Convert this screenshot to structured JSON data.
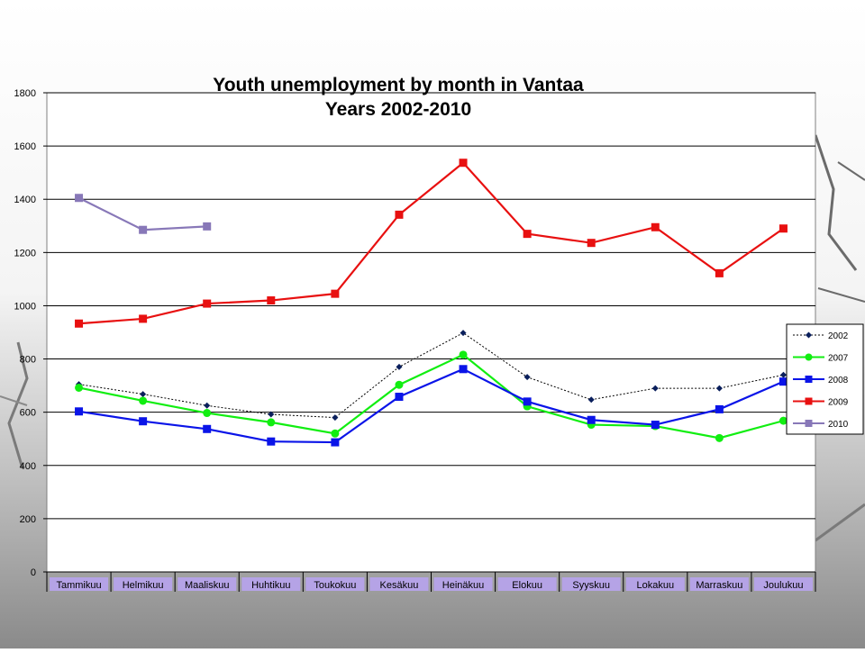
{
  "chart_data": {
    "type": "line",
    "title_lines": [
      "Youth unemployment  by month in Vantaa",
      "Years 2002-2010"
    ],
    "xlabel": "",
    "ylabel": "",
    "ylim": [
      0,
      1800
    ],
    "yticks": [
      0,
      200,
      400,
      600,
      800,
      1000,
      1200,
      1400,
      1600,
      1800
    ],
    "grid": true,
    "legend_position": "right",
    "categories": [
      "Tammikuu",
      "Helmikuu",
      "Maaliskuu",
      "Huhtikuu",
      "Toukokuu",
      "Kesäkuu",
      "Heinäkuu",
      "Elokuu",
      "Syyskuu",
      "Lokakuu",
      "Marraskuu",
      "Joulukuu"
    ],
    "series": [
      {
        "name": "2002",
        "color": "#0a1f5c",
        "marker": "diamond",
        "dashed": true,
        "values": [
          705,
          668,
          625,
          592,
          580,
          770,
          898,
          732,
          647,
          690,
          690,
          740
        ]
      },
      {
        "name": "2007",
        "color": "#11ee11",
        "marker": "circle",
        "dashed": false,
        "values": [
          692,
          643,
          597,
          562,
          520,
          703,
          816,
          622,
          553,
          548,
          503,
          568
        ]
      },
      {
        "name": "2008",
        "color": "#0a14e8",
        "marker": "square",
        "dashed": false,
        "values": [
          603,
          566,
          537,
          490,
          487,
          658,
          762,
          640,
          571,
          553,
          611,
          715
        ]
      },
      {
        "name": "2009",
        "color": "#e81010",
        "marker": "square",
        "dashed": false,
        "values": [
          933,
          951,
          1008,
          1020,
          1045,
          1342,
          1537,
          1270,
          1236,
          1295,
          1122,
          1290
        ]
      },
      {
        "name": "2010",
        "color": "#8878b8",
        "marker": "square",
        "dashed": false,
        "values": [
          1405,
          1285,
          1298,
          null,
          null,
          null,
          null,
          null,
          null,
          null,
          null,
          null
        ]
      }
    ]
  }
}
